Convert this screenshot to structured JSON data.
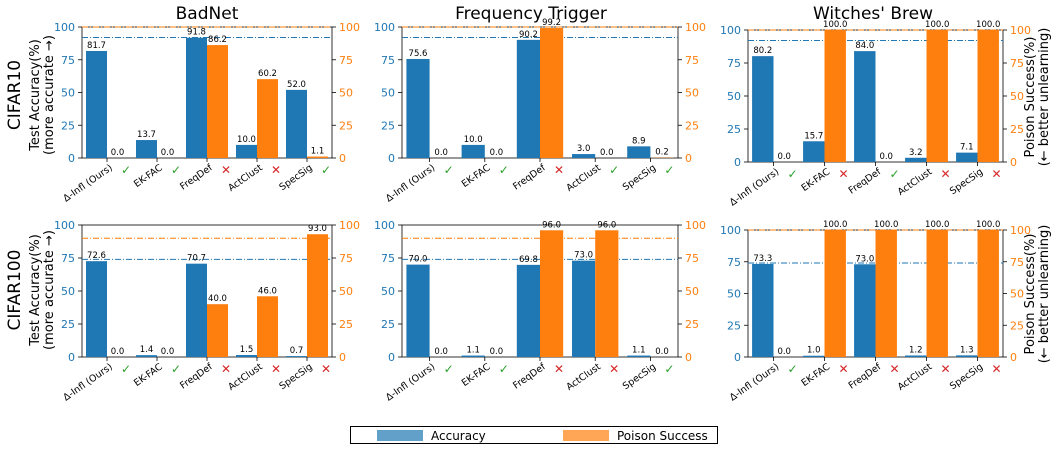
{
  "colors": {
    "accuracy": "#1f77b4",
    "poison": "#ff7f0e",
    "check": "#2ca02c",
    "cross": "#d62728"
  },
  "row_labels": [
    "CIFAR10",
    "CIFAR100"
  ],
  "column_titles": [
    "BadNet",
    "Frequency Trigger",
    "Witches' Brew"
  ],
  "y_left_title": [
    "Test Accuracy(%)",
    "(more accurate →)"
  ],
  "y_right_title": [
    "Poison Success(%)",
    "(← better unlearning)"
  ],
  "legend": {
    "accuracy_label": "Accuracy",
    "poison_label": "Poison Success"
  },
  "chart_data": [
    {
      "type": "bar",
      "title": "BadNet",
      "row": "CIFAR10",
      "categories": [
        "Δ-Infl (Ours)",
        "EK-FAC",
        "FreqDef",
        "ActClust",
        "SpecSig"
      ],
      "series": [
        {
          "name": "Accuracy",
          "values": [
            81.7,
            13.7,
            91.8,
            10.0,
            52.0
          ]
        },
        {
          "name": "Poison Success",
          "values": [
            0.0,
            0.0,
            86.2,
            60.2,
            1.1
          ]
        }
      ],
      "marks": [
        "check",
        "check",
        "cross",
        "cross",
        "check"
      ],
      "ref_accuracy": 92,
      "ref_poison": 100,
      "ylim": [
        0,
        100
      ]
    },
    {
      "type": "bar",
      "title": "Frequency Trigger",
      "row": "CIFAR10",
      "categories": [
        "Δ-Infl (Ours)",
        "EK-FAC",
        "FreqDef",
        "ActClust",
        "SpecSig"
      ],
      "series": [
        {
          "name": "Accuracy",
          "values": [
            75.6,
            10.0,
            90.2,
            3.0,
            8.9
          ]
        },
        {
          "name": "Poison Success",
          "values": [
            0.0,
            0.0,
            99.2,
            0.0,
            0.2
          ]
        }
      ],
      "marks": [
        "check",
        "check",
        "cross",
        "check",
        "check"
      ],
      "ref_accuracy": 92,
      "ref_poison": 100,
      "ylim": [
        0,
        100
      ]
    },
    {
      "type": "bar",
      "title": "Witches' Brew",
      "row": "CIFAR10",
      "categories": [
        "Δ-Infl (Ours)",
        "EK-FAC",
        "FreqDef",
        "ActClust",
        "SpecSig"
      ],
      "series": [
        {
          "name": "Accuracy",
          "values": [
            80.2,
            15.7,
            84.0,
            3.2,
            7.1
          ]
        },
        {
          "name": "Poison Success",
          "values": [
            0.0,
            100.0,
            0.0,
            100.0,
            100.0
          ]
        }
      ],
      "marks": [
        "check",
        "cross",
        "check",
        "cross",
        "cross"
      ],
      "ref_accuracy": 92,
      "ref_poison": 100,
      "ylim": [
        0,
        100
      ]
    },
    {
      "type": "bar",
      "title": "BadNet",
      "row": "CIFAR100",
      "categories": [
        "Δ-Infl (Ours)",
        "EK-FAC",
        "FreqDef",
        "ActClust",
        "SpecSig"
      ],
      "series": [
        {
          "name": "Accuracy",
          "values": [
            72.6,
            1.4,
            70.7,
            1.5,
            0.7
          ]
        },
        {
          "name": "Poison Success",
          "values": [
            0.0,
            0.0,
            40.0,
            46.0,
            93.0
          ]
        }
      ],
      "marks": [
        "check",
        "check",
        "cross",
        "cross",
        "cross"
      ],
      "ref_accuracy": 74,
      "ref_poison": 90,
      "ylim": [
        0,
        100
      ]
    },
    {
      "type": "bar",
      "title": "Frequency Trigger",
      "row": "CIFAR100",
      "categories": [
        "Δ-Infl (Ours)",
        "EK-FAC",
        "FreqDef",
        "ActClust",
        "SpecSig"
      ],
      "series": [
        {
          "name": "Accuracy",
          "values": [
            70.0,
            1.1,
            69.8,
            73.0,
            1.1
          ]
        },
        {
          "name": "Poison Success",
          "values": [
            0.0,
            0.0,
            96.0,
            96.0,
            0.0
          ]
        }
      ],
      "marks": [
        "check",
        "check",
        "cross",
        "cross",
        "check"
      ],
      "ref_accuracy": 74,
      "ref_poison": 90,
      "ylim": [
        0,
        100
      ]
    },
    {
      "type": "bar",
      "title": "Witches' Brew",
      "row": "CIFAR100",
      "categories": [
        "Δ-Infl (Ours)",
        "EK-FAC",
        "FreqDef",
        "ActClust",
        "SpecSig"
      ],
      "series": [
        {
          "name": "Accuracy",
          "values": [
            73.3,
            1.0,
            73.0,
            1.2,
            1.3
          ]
        },
        {
          "name": "Poison Success",
          "values": [
            0.0,
            100.0,
            100.0,
            100.0,
            100.0
          ]
        }
      ],
      "marks": [
        "check",
        "cross",
        "cross",
        "cross",
        "cross"
      ],
      "ref_accuracy": 74,
      "ref_poison": 100,
      "ylim": [
        0,
        100
      ]
    }
  ]
}
